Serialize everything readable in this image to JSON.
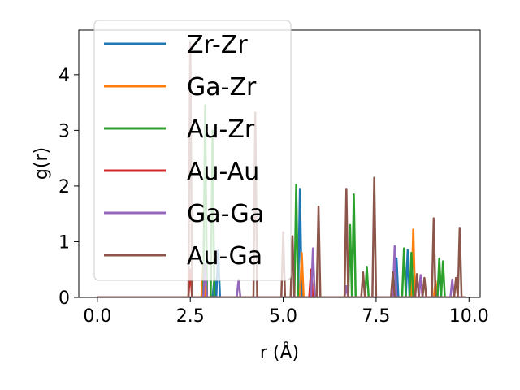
{
  "chart_data": {
    "type": "line",
    "xlabel": "r (Å)",
    "ylabel": "g(r)",
    "xlim": [
      -0.5,
      10.3
    ],
    "ylim": [
      0,
      4.8
    ],
    "xticks": [
      0.0,
      2.5,
      5.0,
      7.5,
      10.0
    ],
    "xtick_labels": [
      "0.0",
      "2.5",
      "5.0",
      "7.5",
      "10.0"
    ],
    "yticks": [
      0,
      1,
      2,
      3,
      4
    ],
    "ytick_labels": [
      "0",
      "1",
      "2",
      "3",
      "4"
    ],
    "grid": false,
    "legend_position": "upper-left",
    "series": [
      {
        "name": "Zr-Zr",
        "color": "#1f77b4",
        "peaks": [
          [
            3.15,
            0.35
          ],
          [
            3.25,
            0.85
          ],
          [
            5.45,
            1.95
          ],
          [
            8.05,
            0.7
          ],
          [
            8.35,
            0.85
          ],
          [
            9.2,
            0.55
          ]
        ]
      },
      {
        "name": "Ga-Zr",
        "color": "#ff7f0e",
        "peaks": [
          [
            2.85,
            0.6
          ],
          [
            5.5,
            0.8
          ],
          [
            8.5,
            1.22
          ],
          [
            9.1,
            0.3
          ]
        ]
      },
      {
        "name": "Au-Zr",
        "color": "#2ca02c",
        "peaks": [
          [
            2.9,
            3.45
          ],
          [
            3.1,
            3.0
          ],
          [
            5.35,
            2.02
          ],
          [
            6.8,
            1.3
          ],
          [
            6.9,
            1.85
          ],
          [
            7.25,
            0.55
          ],
          [
            8.25,
            0.88
          ],
          [
            8.45,
            0.8
          ],
          [
            9.2,
            0.7
          ],
          [
            9.3,
            0.65
          ]
        ]
      },
      {
        "name": "Au-Au",
        "color": "#d62728",
        "peaks": [
          [
            2.5,
            0.5
          ],
          [
            5.75,
            0.5
          ],
          [
            8.7,
            0.4
          ]
        ]
      },
      {
        "name": "Ga-Ga",
        "color": "#9467bd",
        "peaks": [
          [
            2.9,
            0.6
          ],
          [
            3.8,
            0.32
          ],
          [
            5.8,
            0.88
          ],
          [
            6.7,
            0.2
          ],
          [
            8.0,
            0.92
          ],
          [
            8.7,
            0.4
          ],
          [
            9.55,
            0.32
          ]
        ]
      },
      {
        "name": "Au-Ga",
        "color": "#8c564b",
        "peaks": [
          [
            2.5,
            4.58
          ],
          [
            4.25,
            3.32
          ],
          [
            5.0,
            1.17
          ],
          [
            5.25,
            1.1
          ],
          [
            5.95,
            1.63
          ],
          [
            6.7,
            1.95
          ],
          [
            7.15,
            0.45
          ],
          [
            7.45,
            2.15
          ],
          [
            7.95,
            0.45
          ],
          [
            8.6,
            0.42
          ],
          [
            8.8,
            0.35
          ],
          [
            9.05,
            1.42
          ],
          [
            9.65,
            0.35
          ],
          [
            9.75,
            1.25
          ]
        ]
      }
    ]
  }
}
